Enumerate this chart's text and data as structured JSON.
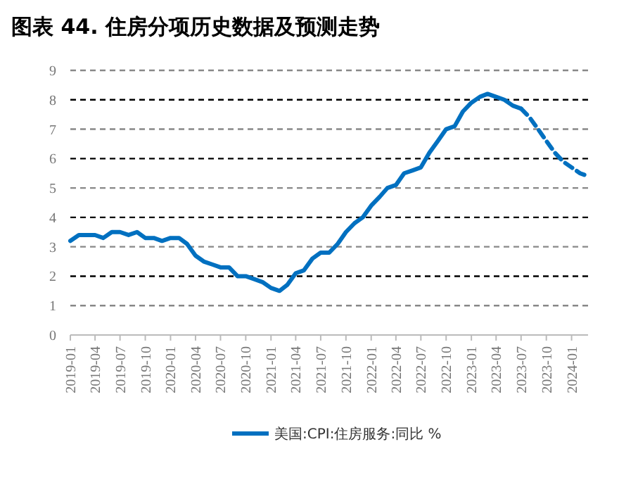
{
  "chart_data": {
    "type": "line",
    "title": "图表 44. 住房分项历史数据及预测走势",
    "x": [
      "2019-01",
      "2019-02",
      "2019-03",
      "2019-04",
      "2019-05",
      "2019-06",
      "2019-07",
      "2019-08",
      "2019-09",
      "2019-10",
      "2019-11",
      "2019-12",
      "2020-01",
      "2020-02",
      "2020-03",
      "2020-04",
      "2020-05",
      "2020-06",
      "2020-07",
      "2020-08",
      "2020-09",
      "2020-10",
      "2020-11",
      "2020-12",
      "2021-01",
      "2021-02",
      "2021-03",
      "2021-04",
      "2021-05",
      "2021-06",
      "2021-07",
      "2021-08",
      "2021-09",
      "2021-10",
      "2021-11",
      "2021-12",
      "2022-01",
      "2022-02",
      "2022-03",
      "2022-04",
      "2022-05",
      "2022-06",
      "2022-07",
      "2022-08",
      "2022-09",
      "2022-10",
      "2022-11",
      "2022-12",
      "2023-01",
      "2023-02",
      "2023-03",
      "2023-04",
      "2023-05",
      "2023-06",
      "2023-07",
      "2023-08",
      "2023-09",
      "2023-10",
      "2023-11",
      "2023-12",
      "2024-01",
      "2024-02",
      "2024-03"
    ],
    "series": [
      {
        "name": "美国:CPI:住房服务:同比 %",
        "color": "#0070c0",
        "line_style": "solid",
        "values": [
          3.2,
          3.4,
          3.4,
          3.4,
          3.3,
          3.5,
          3.5,
          3.4,
          3.5,
          3.3,
          3.3,
          3.2,
          3.3,
          3.3,
          3.1,
          2.7,
          2.5,
          2.4,
          2.3,
          2.3,
          2.0,
          2.0,
          1.9,
          1.8,
          1.6,
          1.5,
          1.7,
          2.1,
          2.2,
          2.6,
          2.8,
          2.8,
          3.1,
          3.5,
          3.8,
          4.0,
          4.4,
          4.7,
          5.0,
          5.1,
          5.5,
          5.6,
          5.7,
          6.2,
          6.6,
          7.0,
          7.1,
          7.6,
          7.9,
          8.1,
          8.2,
          8.1,
          8.0,
          7.8,
          7.7,
          null,
          null,
          null,
          null,
          null,
          null,
          null,
          null
        ]
      },
      {
        "color": "#0070c0",
        "line_style": "dashed",
        "values": [
          null,
          null,
          null,
          null,
          null,
          null,
          null,
          null,
          null,
          null,
          null,
          null,
          null,
          null,
          null,
          null,
          null,
          null,
          null,
          null,
          null,
          null,
          null,
          null,
          null,
          null,
          null,
          null,
          null,
          null,
          null,
          null,
          null,
          null,
          null,
          null,
          null,
          null,
          null,
          null,
          null,
          null,
          null,
          null,
          null,
          null,
          null,
          null,
          null,
          null,
          null,
          null,
          null,
          null,
          7.7,
          7.4,
          7.0,
          6.6,
          6.2,
          5.9,
          5.7,
          5.5,
          5.4
        ]
      }
    ],
    "xlim": [
      "2019-01",
      "2024-03"
    ],
    "xticks": [
      "2019-01",
      "2019-04",
      "2019-07",
      "2019-10",
      "2020-01",
      "2020-04",
      "2020-07",
      "2020-10",
      "2021-01",
      "2021-04",
      "2021-07",
      "2021-10",
      "2022-01",
      "2022-04",
      "2022-07",
      "2022-10",
      "2023-01",
      "2023-04",
      "2023-07",
      "2023-10",
      "2024-01"
    ],
    "ylim": [
      0,
      9
    ],
    "yticks": [
      0,
      1,
      2,
      3,
      4,
      5,
      6,
      7,
      8,
      9
    ],
    "grid": "y",
    "legend": "bottom",
    "marker": "none"
  }
}
